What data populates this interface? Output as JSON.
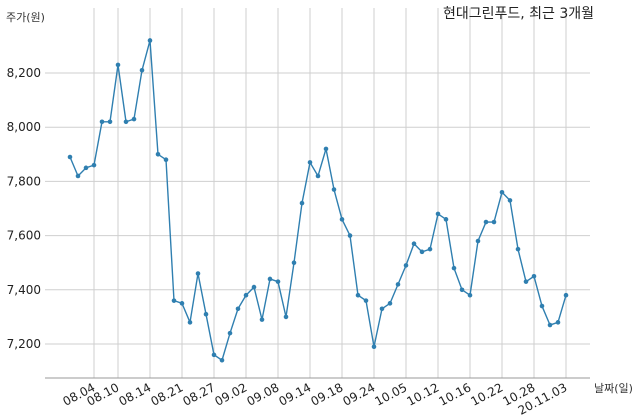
{
  "chart_data": {
    "type": "line",
    "title": "현대그린푸드, 최근 3개월",
    "ylabel": "주가(원)",
    "xlabel": "날짜(일)",
    "ylim": [
      7100,
      8370
    ],
    "y_ticks": [
      7200,
      7400,
      7600,
      7800,
      8000,
      8200
    ],
    "grid": true,
    "x_tick_labels": [
      "08.04",
      "08.10",
      "08.14",
      "08.21",
      "08.27",
      "09.02",
      "09.08",
      "09.14",
      "09.18",
      "09.24",
      "10.05",
      "10.12",
      "10.16",
      "10.22",
      "10.28",
      "20.11.03"
    ],
    "colors": {
      "line": "#2f7fb0",
      "marker": "#2f7fb0",
      "grid": "#cfcfcf"
    },
    "series": [
      {
        "values": [
          7890,
          7820,
          7850,
          7860,
          8020,
          8020,
          8230,
          8020,
          8030,
          8210,
          8320,
          7900,
          7880,
          7360,
          7350,
          7280,
          7460,
          7310,
          7160,
          7140,
          7240,
          7330,
          7380,
          7410,
          7290,
          7440,
          7430,
          7300,
          7500,
          7720,
          7870,
          7820,
          7920,
          7770,
          7660,
          7600,
          7380,
          7360,
          7190,
          7330,
          7350,
          7420,
          7490,
          7570,
          7540,
          7550,
          7680,
          7660,
          7480,
          7400,
          7380,
          7580,
          7650,
          7650,
          7760,
          7730,
          7550,
          7430,
          7450,
          7340,
          7270,
          7280,
          7380
        ]
      }
    ]
  }
}
